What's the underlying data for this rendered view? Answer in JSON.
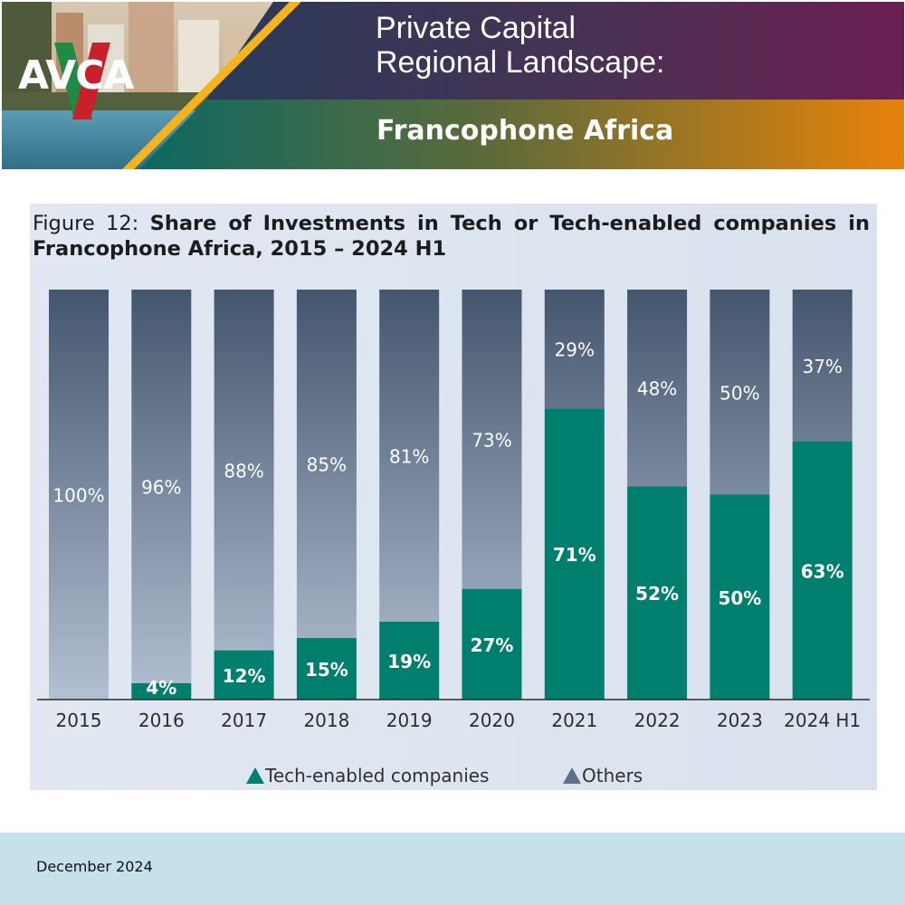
{
  "header": {
    "logo_text": "AVCA",
    "title_line1": "Private Capital",
    "title_line2": "Regional Landscape:",
    "subtitle": "Francophone Africa",
    "colors": {
      "purple": "#6a2150",
      "teal": "#0f6a63",
      "orange": "#e7820a",
      "gold": "#f4b41a",
      "navy": "#2b3a55"
    }
  },
  "figure": {
    "caption_prefix": "Figure 12:",
    "caption_bold": "Share of Investments in Tech or Tech-enabled companies in Francophone Africa, 2015 – 2024 H1"
  },
  "chart_data": {
    "type": "bar",
    "stacked": true,
    "title": "Share of Investments in Tech or Tech-enabled companies in Francophone Africa, 2015 – 2024 H1",
    "categories": [
      "2015",
      "2016",
      "2017",
      "2018",
      "2019",
      "2020",
      "2021",
      "2022",
      "2023",
      "2024 H1"
    ],
    "series": [
      {
        "name": "Tech-enabled companies",
        "color": "#007f6e",
        "values": [
          0,
          4,
          12,
          15,
          19,
          27,
          71,
          52,
          50,
          63
        ],
        "labels": [
          "",
          "4%",
          "12%",
          "15%",
          "19%",
          "27%",
          "71%",
          "52%",
          "50%",
          "63%"
        ]
      },
      {
        "name": "Others",
        "color": "#4a5f78",
        "values": [
          100,
          96,
          88,
          85,
          81,
          73,
          29,
          48,
          50,
          37
        ],
        "labels": [
          "100%",
          "96%",
          "88%",
          "85%",
          "81%",
          "73%",
          "29%",
          "48%",
          "50%",
          "37%"
        ]
      }
    ],
    "ylim": [
      0,
      100
    ],
    "grid": false,
    "legend": "bottom-center"
  },
  "footer": {
    "date": "December 2024"
  }
}
